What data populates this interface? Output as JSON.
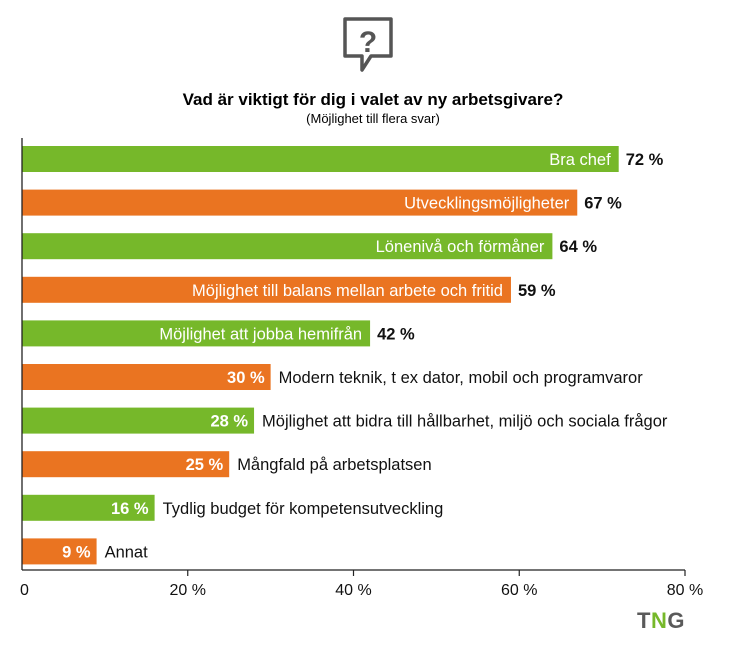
{
  "colors": {
    "green": "#76b82a",
    "orange": "#ea7421",
    "axis": "#222222",
    "logo_dark": "#5a5a5a",
    "logo_green": "#76b82a"
  },
  "icon": "question-speech-bubble-icon",
  "logo": {
    "t": "T",
    "n": "N",
    "g": "G"
  },
  "chart_data": {
    "type": "bar",
    "orientation": "horizontal",
    "title": "Vad är viktigt för dig i valet av ny arbetsgivare?",
    "subtitle": "(Möjlighet till flera svar)",
    "categories": [
      "Bra chef",
      "Utvecklingsmöjligheter",
      "Lönenivå och förmåner",
      "Möjlighet till balans mellan arbete och fritid",
      "Möjlighet att jobba hemifrån",
      "Modern teknik, t ex dator, mobil och programvaror",
      "Möjlighet att bidra till hållbarhet, miljö och sociala frågor",
      "Mångfald på arbetsplatsen",
      "Tydlig budget för kompetensutveckling",
      "Annat"
    ],
    "values": [
      72,
      67,
      64,
      59,
      42,
      30,
      28,
      25,
      16,
      9
    ],
    "value_labels": [
      "72 %",
      "67 %",
      "64 %",
      "59 %",
      "42 %",
      "30 %",
      "28 %",
      "25 %",
      "16 %",
      "9 %"
    ],
    "bar_colors": [
      "green",
      "orange",
      "green",
      "orange",
      "green",
      "orange",
      "green",
      "orange",
      "green",
      "orange"
    ],
    "xlim": [
      0,
      80
    ],
    "xticks": [
      0,
      20,
      40,
      60,
      80
    ],
    "xtick_labels": [
      "0",
      "20 %",
      "40 %",
      "60 %",
      "80 %"
    ],
    "grid": false,
    "legend": "none"
  }
}
